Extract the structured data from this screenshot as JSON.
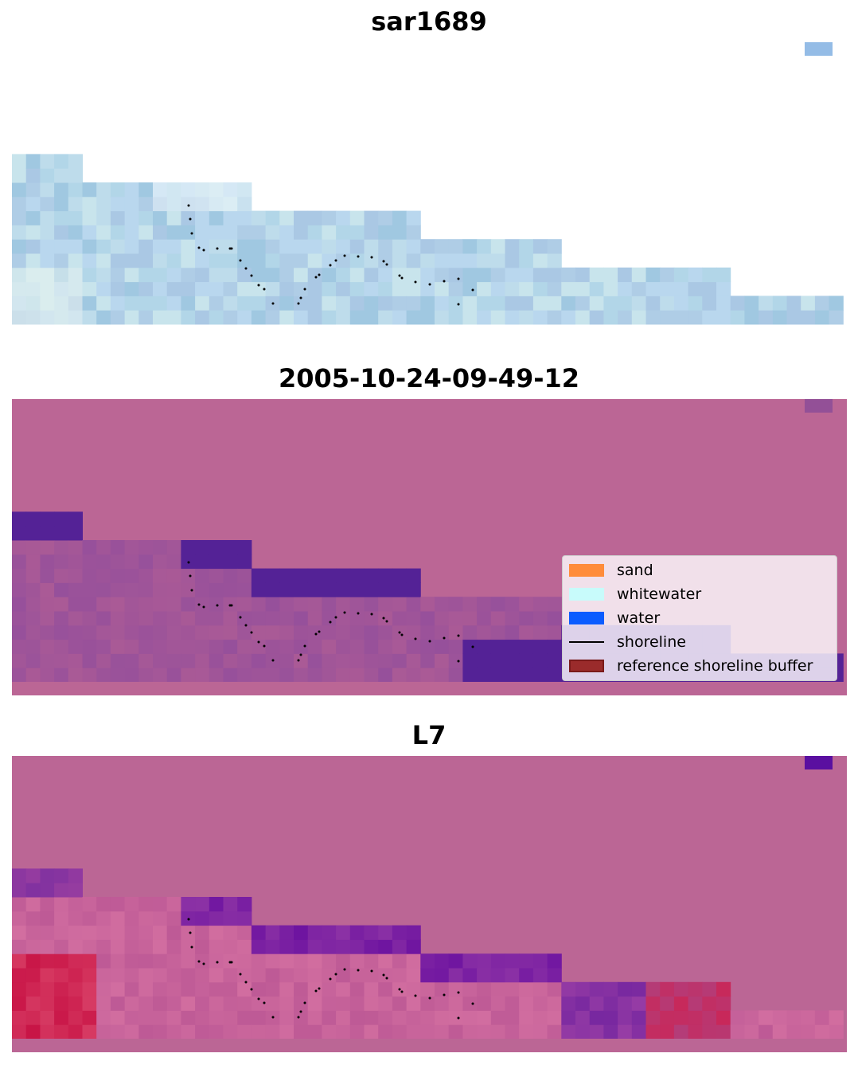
{
  "panels": [
    {
      "title": "sar1689"
    },
    {
      "title": "2005-10-24-09-49-12"
    },
    {
      "title": "L7"
    }
  ],
  "legend": {
    "items": [
      {
        "label": "sand",
        "color": "#ff8c3a",
        "kind": "patch"
      },
      {
        "label": "whitewater",
        "color": "#c8fbfb",
        "kind": "patch"
      },
      {
        "label": "water",
        "color": "#0a5cff",
        "kind": "patch"
      },
      {
        "label": "shoreline",
        "color": "#000000",
        "kind": "line"
      },
      {
        "label": "reference shoreline buffer",
        "color": "#9a2b2b",
        "kind": "patch"
      }
    ]
  }
}
